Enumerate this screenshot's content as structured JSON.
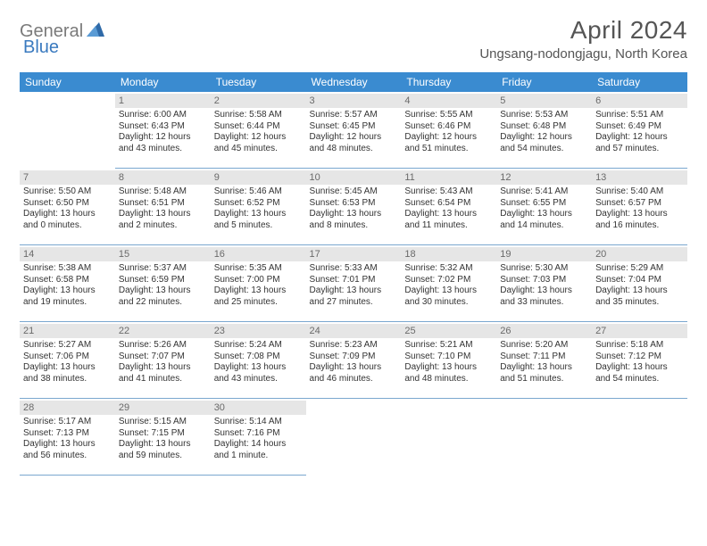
{
  "logo": {
    "text1": "General",
    "text2": "Blue"
  },
  "title": "April 2024",
  "location": "Ungsang-nodongjagu, North Korea",
  "colors": {
    "header_bg": "#3a8bd0",
    "header_fg": "#ffffff",
    "daynum_bg": "#e6e6e6",
    "daynum_fg": "#6a6a6a",
    "border": "#7aa7cf",
    "logo_gray": "#7a7a7a",
    "logo_blue": "#3a7abf",
    "title_color": "#555555",
    "text_color": "#333333",
    "page_bg": "#ffffff"
  },
  "typography": {
    "title_fontsize": 28,
    "location_fontsize": 15,
    "header_fontsize": 12,
    "daynum_fontsize": 11,
    "cell_fontsize": 10
  },
  "dayHeaders": [
    "Sunday",
    "Monday",
    "Tuesday",
    "Wednesday",
    "Thursday",
    "Friday",
    "Saturday"
  ],
  "weeks": [
    [
      null,
      {
        "n": "1",
        "sr": "6:00 AM",
        "ss": "6:43 PM",
        "dl": "12 hours and 43 minutes."
      },
      {
        "n": "2",
        "sr": "5:58 AM",
        "ss": "6:44 PM",
        "dl": "12 hours and 45 minutes."
      },
      {
        "n": "3",
        "sr": "5:57 AM",
        "ss": "6:45 PM",
        "dl": "12 hours and 48 minutes."
      },
      {
        "n": "4",
        "sr": "5:55 AM",
        "ss": "6:46 PM",
        "dl": "12 hours and 51 minutes."
      },
      {
        "n": "5",
        "sr": "5:53 AM",
        "ss": "6:48 PM",
        "dl": "12 hours and 54 minutes."
      },
      {
        "n": "6",
        "sr": "5:51 AM",
        "ss": "6:49 PM",
        "dl": "12 hours and 57 minutes."
      }
    ],
    [
      {
        "n": "7",
        "sr": "5:50 AM",
        "ss": "6:50 PM",
        "dl": "13 hours and 0 minutes."
      },
      {
        "n": "8",
        "sr": "5:48 AM",
        "ss": "6:51 PM",
        "dl": "13 hours and 2 minutes."
      },
      {
        "n": "9",
        "sr": "5:46 AM",
        "ss": "6:52 PM",
        "dl": "13 hours and 5 minutes."
      },
      {
        "n": "10",
        "sr": "5:45 AM",
        "ss": "6:53 PM",
        "dl": "13 hours and 8 minutes."
      },
      {
        "n": "11",
        "sr": "5:43 AM",
        "ss": "6:54 PM",
        "dl": "13 hours and 11 minutes."
      },
      {
        "n": "12",
        "sr": "5:41 AM",
        "ss": "6:55 PM",
        "dl": "13 hours and 14 minutes."
      },
      {
        "n": "13",
        "sr": "5:40 AM",
        "ss": "6:57 PM",
        "dl": "13 hours and 16 minutes."
      }
    ],
    [
      {
        "n": "14",
        "sr": "5:38 AM",
        "ss": "6:58 PM",
        "dl": "13 hours and 19 minutes."
      },
      {
        "n": "15",
        "sr": "5:37 AM",
        "ss": "6:59 PM",
        "dl": "13 hours and 22 minutes."
      },
      {
        "n": "16",
        "sr": "5:35 AM",
        "ss": "7:00 PM",
        "dl": "13 hours and 25 minutes."
      },
      {
        "n": "17",
        "sr": "5:33 AM",
        "ss": "7:01 PM",
        "dl": "13 hours and 27 minutes."
      },
      {
        "n": "18",
        "sr": "5:32 AM",
        "ss": "7:02 PM",
        "dl": "13 hours and 30 minutes."
      },
      {
        "n": "19",
        "sr": "5:30 AM",
        "ss": "7:03 PM",
        "dl": "13 hours and 33 minutes."
      },
      {
        "n": "20",
        "sr": "5:29 AM",
        "ss": "7:04 PM",
        "dl": "13 hours and 35 minutes."
      }
    ],
    [
      {
        "n": "21",
        "sr": "5:27 AM",
        "ss": "7:06 PM",
        "dl": "13 hours and 38 minutes."
      },
      {
        "n": "22",
        "sr": "5:26 AM",
        "ss": "7:07 PM",
        "dl": "13 hours and 41 minutes."
      },
      {
        "n": "23",
        "sr": "5:24 AM",
        "ss": "7:08 PM",
        "dl": "13 hours and 43 minutes."
      },
      {
        "n": "24",
        "sr": "5:23 AM",
        "ss": "7:09 PM",
        "dl": "13 hours and 46 minutes."
      },
      {
        "n": "25",
        "sr": "5:21 AM",
        "ss": "7:10 PM",
        "dl": "13 hours and 48 minutes."
      },
      {
        "n": "26",
        "sr": "5:20 AM",
        "ss": "7:11 PM",
        "dl": "13 hours and 51 minutes."
      },
      {
        "n": "27",
        "sr": "5:18 AM",
        "ss": "7:12 PM",
        "dl": "13 hours and 54 minutes."
      }
    ],
    [
      {
        "n": "28",
        "sr": "5:17 AM",
        "ss": "7:13 PM",
        "dl": "13 hours and 56 minutes."
      },
      {
        "n": "29",
        "sr": "5:15 AM",
        "ss": "7:15 PM",
        "dl": "13 hours and 59 minutes."
      },
      {
        "n": "30",
        "sr": "5:14 AM",
        "ss": "7:16 PM",
        "dl": "14 hours and 1 minute."
      },
      null,
      null,
      null,
      null
    ]
  ],
  "labels": {
    "sunrise": "Sunrise:",
    "sunset": "Sunset:",
    "daylight": "Daylight:"
  }
}
